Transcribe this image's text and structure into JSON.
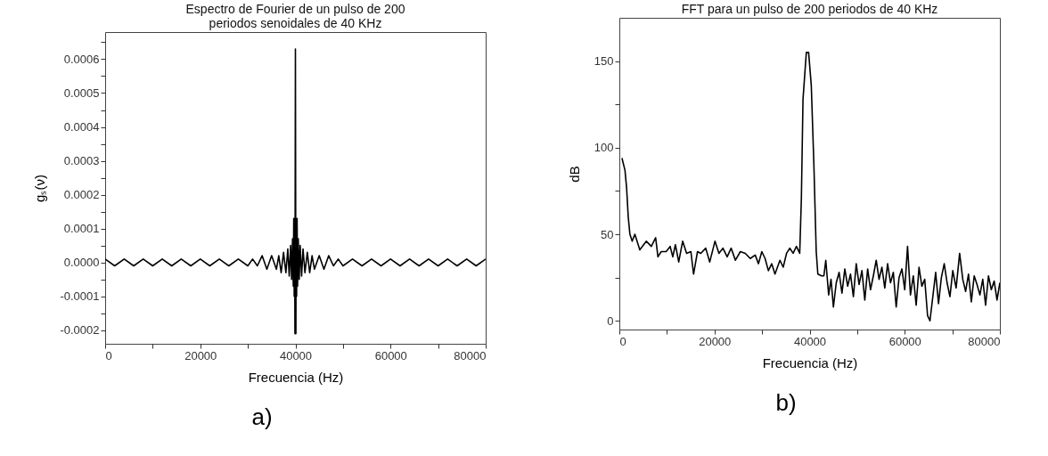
{
  "chart_data": [
    {
      "type": "line",
      "title": "Espectro de Fourier de un pulso de 200 periodos senoidales de 40 KHz",
      "xlabel": "Frecuencia (Hz)",
      "ylabel": "gₛ(ν)",
      "annotations": [
        "a)"
      ],
      "x": [
        0,
        2000,
        4000,
        6000,
        8000,
        10000,
        12000,
        14000,
        16000,
        18000,
        20000,
        22000,
        24000,
        26000,
        28000,
        30000,
        31000,
        32000,
        33000,
        34000,
        35000,
        36000,
        36500,
        37000,
        37500,
        38000,
        38400,
        38700,
        39000,
        39200,
        39400,
        39550,
        39650,
        39750,
        39850,
        39900,
        40000,
        40100,
        40150,
        40250,
        40350,
        40450,
        40600,
        40800,
        41000,
        41300,
        41600,
        42000,
        42500,
        43000,
        43500,
        44000,
        45000,
        46000,
        47000,
        48000,
        49000,
        50000,
        52000,
        54000,
        56000,
        58000,
        60000,
        62000,
        64000,
        66000,
        68000,
        70000,
        72000,
        74000,
        76000,
        78000,
        80000
      ],
      "series": [
        {
          "color": "#000000",
          "values": [
            1e-05,
            -1e-05,
            1e-05,
            -1e-05,
            1e-05,
            -1e-05,
            1e-05,
            -1e-05,
            1e-05,
            -1e-05,
            1e-05,
            -1e-05,
            1e-05,
            -1e-05,
            1e-05,
            -1e-05,
            1e-05,
            -1e-05,
            2e-05,
            -2e-05,
            2e-05,
            -2e-05,
            2e-05,
            -3e-05,
            3e-05,
            -3e-05,
            4e-05,
            -4e-05,
            5e-05,
            -5e-05,
            7e-05,
            -7e-05,
            0.00013,
            -0.0001,
            0.00013,
            -0.00021,
            0.00063,
            -0.00021,
            0.00013,
            -0.0001,
            0.00013,
            -7e-05,
            7e-05,
            -5e-05,
            5e-05,
            -4e-05,
            4e-05,
            -3e-05,
            3e-05,
            -3e-05,
            2e-05,
            -2e-05,
            2e-05,
            -2e-05,
            2e-05,
            -1e-05,
            1e-05,
            -1e-05,
            1e-05,
            -1e-05,
            1e-05,
            -1e-05,
            1e-05,
            -1e-05,
            1e-05,
            -1e-05,
            1e-05,
            -1e-05,
            1e-05,
            -1e-05,
            1e-05,
            -1e-05,
            1e-05
          ]
        }
      ],
      "xlim": [
        0,
        80000
      ],
      "ylim": [
        -0.00024,
        0.00068
      ],
      "xticks": [
        0,
        {
          "value": 10000,
          "label": null
        },
        20000,
        {
          "value": 30000,
          "label": null
        },
        40000,
        {
          "value": 50000,
          "label": null
        },
        60000,
        {
          "value": 70000,
          "label": null
        },
        80000
      ],
      "yticks": [
        {
          "value": -0.0002,
          "label": "-0.0002"
        },
        {
          "value": -0.00015,
          "label": null
        },
        {
          "value": -0.0001,
          "label": "-0.0001"
        },
        {
          "value": -5e-05,
          "label": null
        },
        {
          "value": 0,
          "label": "0.0000"
        },
        {
          "value": 5e-05,
          "label": null
        },
        {
          "value": 0.0001,
          "label": "0.0001"
        },
        {
          "value": 0.00015,
          "label": null
        },
        {
          "value": 0.0002,
          "label": "0.0002"
        },
        {
          "value": 0.00025,
          "label": null
        },
        {
          "value": 0.0003,
          "label": "0.0003"
        },
        {
          "value": 0.00035,
          "label": null
        },
        {
          "value": 0.0004,
          "label": "0.0004"
        },
        {
          "value": 0.00045,
          "label": null
        },
        {
          "value": 0.0005,
          "label": "0.0005"
        },
        {
          "value": 0.00055,
          "label": null
        },
        {
          "value": 0.0006,
          "label": "0.0006"
        },
        {
          "value": 0.00065,
          "label": null
        }
      ]
    },
    {
      "type": "line",
      "title": "FFT para un pulso de 200 periodos de 40 KHz",
      "xlabel": "Frecuencia (Hz)",
      "ylabel": "dB",
      "annotations": [
        "b)"
      ],
      "x": [
        550,
        1180,
        1520,
        1870,
        2220,
        2700,
        3260,
        4300,
        5680,
        6720,
        7630,
        8110,
        8800,
        9840,
        10680,
        11230,
        11780,
        12480,
        13310,
        14140,
        15040,
        15600,
        16430,
        17120,
        18160,
        19000,
        20100,
        20940,
        21770,
        22670,
        23500,
        24400,
        25440,
        26480,
        27520,
        28560,
        29250,
        29950,
        30640,
        31330,
        32030,
        32720,
        33760,
        34450,
        35150,
        35840,
        36530,
        37230,
        37920,
        38270,
        38610,
        39310,
        39790,
        40350,
        40900,
        41390,
        41730,
        42500,
        43000,
        43400,
        44000,
        44500,
        45000,
        45600,
        46200,
        46800,
        47400,
        48000,
        48600,
        49200,
        49800,
        50400,
        51000,
        51600,
        52200,
        52800,
        53400,
        54000,
        54600,
        55200,
        55800,
        56400,
        57000,
        57600,
        58200,
        58800,
        59400,
        60000,
        60590,
        61200,
        61800,
        62400,
        63000,
        63600,
        64200,
        64800,
        65300,
        65900,
        66500,
        67100,
        67700,
        68300,
        68900,
        69500,
        70100,
        70800,
        71540,
        72200,
        72800,
        73400,
        74000,
        74600,
        75200,
        75800,
        76400,
        77000,
        77600,
        78200,
        78800,
        79400,
        80000
      ],
      "series": [
        {
          "color": "#000000",
          "values": [
            94,
            87,
            77,
            60,
            50,
            46,
            50,
            41,
            46,
            43,
            48,
            37,
            40,
            40,
            43,
            37,
            44,
            34,
            46,
            39,
            40,
            27,
            40,
            39,
            42,
            34,
            46,
            39,
            42,
            37,
            42,
            35,
            40,
            39,
            36,
            38,
            33,
            40,
            36,
            29,
            33,
            27,
            35,
            31,
            39,
            42,
            39,
            43,
            39,
            71,
            128,
            155,
            155,
            136,
            90,
            40,
            27,
            26,
            26,
            35,
            15,
            24,
            8,
            22,
            28,
            16,
            30,
            20,
            27,
            14,
            33,
            21,
            29,
            12,
            30,
            18,
            26,
            35,
            24,
            31,
            19,
            33,
            22,
            28,
            8,
            25,
            30,
            18,
            43,
            15,
            26,
            9,
            31,
            20,
            24,
            3,
            0,
            14,
            28,
            10,
            25,
            33,
            22,
            14,
            29,
            19,
            39,
            24,
            17,
            27,
            11,
            26,
            21,
            15,
            24,
            9,
            26,
            18,
            23,
            12,
            22
          ]
        }
      ],
      "xlim": [
        0,
        80000
      ],
      "ylim": [
        -5,
        175
      ],
      "xticks": [
        0,
        {
          "value": 10000,
          "label": null
        },
        20000,
        {
          "value": 30000,
          "label": null
        },
        40000,
        {
          "value": 50000,
          "label": null
        },
        60000,
        {
          "value": 70000,
          "label": null
        },
        80000
      ],
      "yticks": [
        0,
        {
          "value": 25,
          "label": null
        },
        50,
        {
          "value": 75,
          "label": null
        },
        100,
        {
          "value": 125,
          "label": null
        },
        150
      ]
    }
  ]
}
